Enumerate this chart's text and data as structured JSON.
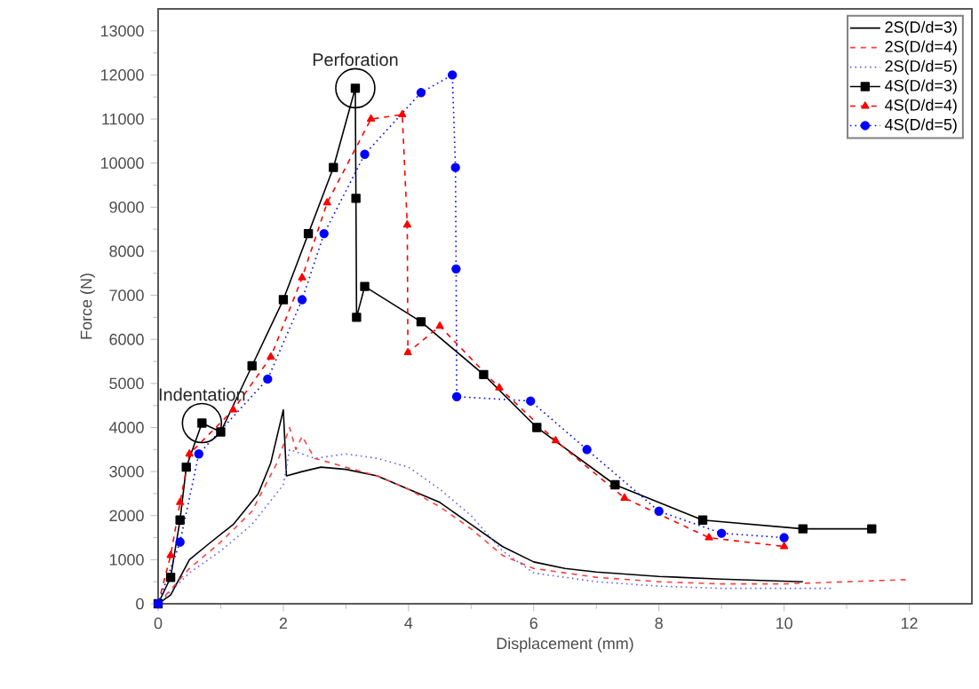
{
  "chart_data": {
    "type": "line",
    "xlabel": "Displacement (mm)",
    "ylabel": "Force (N)",
    "xlim": [
      0,
      13
    ],
    "ylim": [
      0,
      13500
    ],
    "xticks": [
      0,
      2,
      4,
      6,
      8,
      10,
      12
    ],
    "yticks": [
      0,
      1000,
      2000,
      3000,
      4000,
      5000,
      6000,
      7000,
      8000,
      9000,
      10000,
      11000,
      12000,
      13000
    ],
    "legend": "top right",
    "grid": false,
    "annotations": [
      {
        "text": "Perforation",
        "x": 3.15,
        "y": 11700
      },
      {
        "text": "Indentation",
        "x": 0.7,
        "y": 4100
      }
    ],
    "series": [
      {
        "name": "2S(D/d=3)",
        "color": "#000000",
        "marker": "none",
        "line_style": "solid",
        "x": [
          0,
          0.2,
          0.5,
          0.8,
          1.2,
          1.6,
          1.8,
          2.0,
          2.05,
          2.3,
          2.6,
          3.0,
          3.5,
          4.0,
          4.5,
          5.0,
          5.5,
          6.0,
          6.5,
          7,
          8,
          9,
          10.3
        ],
        "values": [
          0,
          200,
          1000,
          1350,
          1800,
          2500,
          3200,
          4400,
          2900,
          3000,
          3100,
          3050,
          2900,
          2600,
          2300,
          1800,
          1300,
          950,
          800,
          720,
          620,
          560,
          500
        ]
      },
      {
        "name": "2S(D/d=4)",
        "color": "#ff4040",
        "marker": "none",
        "line_style": "dashed",
        "x": [
          0,
          0.5,
          1,
          1.5,
          1.9,
          2.1,
          2.2,
          2.3,
          2.5,
          3,
          3.5,
          4,
          4.5,
          5,
          5.5,
          6,
          7,
          8,
          9,
          10,
          11,
          12
        ],
        "values": [
          0,
          800,
          1400,
          2100,
          3200,
          4000,
          3500,
          3800,
          3300,
          3100,
          2900,
          2600,
          2200,
          1700,
          1100,
          800,
          600,
          500,
          450,
          450,
          500,
          550
        ]
      },
      {
        "name": "2S(D/d=5)",
        "color": "#6060ff",
        "marker": "none",
        "line_style": "dotted",
        "x": [
          0,
          0.5,
          1,
          1.5,
          2,
          2.1,
          2.5,
          3,
          3.5,
          4,
          4.5,
          5,
          5.5,
          6,
          7,
          8,
          9,
          10,
          10.8
        ],
        "values": [
          0,
          700,
          1200,
          1800,
          2700,
          3500,
          3300,
          3400,
          3300,
          3100,
          2600,
          2000,
          1200,
          700,
          500,
          400,
          350,
          350,
          350
        ]
      },
      {
        "name": "4S(D/d=3)",
        "color": "#000000",
        "marker": "square",
        "line_style": "solid",
        "x": [
          0,
          0.2,
          0.35,
          0.45,
          0.7,
          1.0,
          1.5,
          2.0,
          2.4,
          2.8,
          3.15,
          3.16,
          3.17,
          3.3,
          4.2,
          5.2,
          6.05,
          7.3,
          8.7,
          10.3,
          11.4
        ],
        "values": [
          0,
          600,
          1900,
          3100,
          4100,
          3900,
          5400,
          6900,
          8400,
          9900,
          11700,
          9200,
          6500,
          7200,
          6400,
          5200,
          4000,
          2700,
          1900,
          1700,
          1700
        ]
      },
      {
        "name": "4S(D/d=4)",
        "color": "#ff0000",
        "marker": "triangle",
        "line_style": "dashed",
        "x": [
          0,
          0.2,
          0.35,
          0.5,
          1.2,
          1.8,
          2.3,
          2.7,
          3.4,
          3.9,
          3.98,
          3.99,
          4.5,
          5.45,
          6.35,
          7.45,
          8.8,
          10
        ],
        "values": [
          0,
          1100,
          2300,
          3400,
          4400,
          5600,
          7400,
          9100,
          11000,
          11100,
          8600,
          5700,
          6300,
          4900,
          3700,
          2400,
          1500,
          1300
        ]
      },
      {
        "name": "4S(D/d=5)",
        "color": "#0000ff",
        "marker": "circle",
        "line_style": "dotted",
        "x": [
          0,
          0.35,
          0.65,
          1.75,
          2.3,
          2.65,
          3.3,
          4.2,
          4.7,
          4.75,
          4.76,
          4.77,
          5.95,
          6.85,
          8.0,
          9.0,
          10
        ],
        "values": [
          0,
          1400,
          3400,
          5100,
          6900,
          8400,
          10200,
          11600,
          12000,
          9900,
          7600,
          4700,
          4600,
          3500,
          2100,
          1600,
          1500
        ]
      }
    ]
  }
}
